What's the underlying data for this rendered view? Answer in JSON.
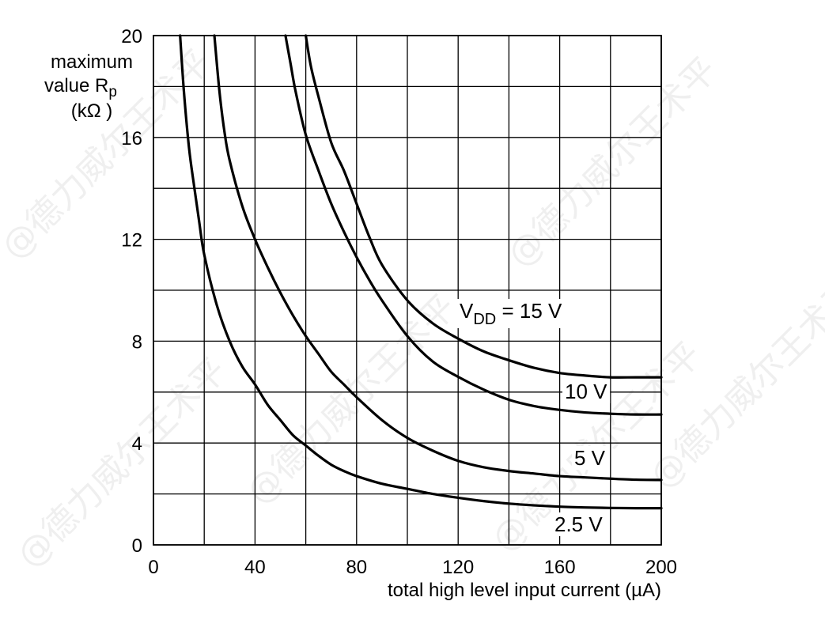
{
  "watermark": "@德力威尔王术平",
  "chart_data": {
    "type": "line",
    "xlabel": "total high level input current (µA)",
    "ylabel_lines": [
      "maximum",
      "value R",
      "(kΩ )"
    ],
    "ylabel_subscript": "p",
    "xlim": [
      0,
      200
    ],
    "ylim": [
      0,
      20
    ],
    "x_ticks": [
      0,
      40,
      80,
      120,
      160,
      200
    ],
    "y_ticks": [
      0,
      4,
      8,
      12,
      16,
      20
    ],
    "x_minor_step": 20,
    "y_minor_step": 2,
    "grid": true,
    "series": [
      {
        "name": "2.5 V",
        "label_main": "2.5 V",
        "label_sub": "",
        "points": [
          [
            10.5,
            20
          ],
          [
            12,
            17.8
          ],
          [
            14,
            15.6
          ],
          [
            16,
            14.1
          ],
          [
            18,
            12.7
          ],
          [
            20,
            11.4
          ],
          [
            25,
            9.4
          ],
          [
            30,
            8.0
          ],
          [
            35,
            7.0
          ],
          [
            40,
            6.3
          ],
          [
            45,
            5.5
          ],
          [
            50,
            4.9
          ],
          [
            55,
            4.3
          ],
          [
            60,
            3.9
          ],
          [
            65,
            3.5
          ],
          [
            70,
            3.15
          ],
          [
            75,
            2.9
          ],
          [
            80,
            2.7
          ],
          [
            90,
            2.4
          ],
          [
            100,
            2.2
          ],
          [
            110,
            2.0
          ],
          [
            120,
            1.85
          ],
          [
            130,
            1.72
          ],
          [
            140,
            1.62
          ],
          [
            150,
            1.55
          ],
          [
            160,
            1.5
          ],
          [
            170,
            1.47
          ],
          [
            180,
            1.45
          ],
          [
            190,
            1.44
          ],
          [
            200,
            1.44
          ]
        ]
      },
      {
        "name": "5 V",
        "label_main": "5 V",
        "label_sub": "",
        "points": [
          [
            24,
            20
          ],
          [
            26,
            17.8
          ],
          [
            28,
            16.2
          ],
          [
            30,
            15.1
          ],
          [
            35,
            13.3
          ],
          [
            40,
            12.0
          ],
          [
            45,
            10.9
          ],
          [
            50,
            9.9
          ],
          [
            55,
            9.0
          ],
          [
            60,
            8.2
          ],
          [
            65,
            7.5
          ],
          [
            70,
            6.8
          ],
          [
            75,
            6.3
          ],
          [
            80,
            5.8
          ],
          [
            90,
            4.9
          ],
          [
            100,
            4.2
          ],
          [
            110,
            3.7
          ],
          [
            120,
            3.3
          ],
          [
            130,
            3.05
          ],
          [
            140,
            2.9
          ],
          [
            150,
            2.8
          ],
          [
            160,
            2.7
          ],
          [
            170,
            2.65
          ],
          [
            180,
            2.6
          ],
          [
            190,
            2.56
          ],
          [
            200,
            2.55
          ]
        ]
      },
      {
        "name": "10 V",
        "label_main": "10 V",
        "label_sub": "",
        "points": [
          [
            52,
            20
          ],
          [
            54,
            18.9
          ],
          [
            56,
            17.8
          ],
          [
            60,
            16.1
          ],
          [
            65,
            14.7
          ],
          [
            70,
            13.4
          ],
          [
            75,
            12.3
          ],
          [
            80,
            11.3
          ],
          [
            85,
            10.4
          ],
          [
            90,
            9.6
          ],
          [
            100,
            8.2
          ],
          [
            110,
            7.2
          ],
          [
            120,
            6.6
          ],
          [
            130,
            6.1
          ],
          [
            140,
            5.7
          ],
          [
            150,
            5.45
          ],
          [
            160,
            5.3
          ],
          [
            170,
            5.2
          ],
          [
            180,
            5.15
          ],
          [
            190,
            5.12
          ],
          [
            200,
            5.12
          ]
        ]
      },
      {
        "name": "15 V",
        "label_main": "V",
        "label_sub": "DD",
        "label_rest": " = 15 V",
        "points": [
          [
            60,
            20
          ],
          [
            62,
            18.8
          ],
          [
            65,
            17.6
          ],
          [
            70,
            15.8
          ],
          [
            75,
            14.7
          ],
          [
            80,
            13.4
          ],
          [
            85,
            12.1
          ],
          [
            90,
            11.0
          ],
          [
            100,
            9.6
          ],
          [
            110,
            8.7
          ],
          [
            120,
            8.1
          ],
          [
            130,
            7.6
          ],
          [
            140,
            7.25
          ],
          [
            150,
            6.95
          ],
          [
            160,
            6.75
          ],
          [
            170,
            6.65
          ],
          [
            180,
            6.58
          ],
          [
            190,
            6.58
          ],
          [
            200,
            6.58
          ]
        ]
      }
    ]
  }
}
